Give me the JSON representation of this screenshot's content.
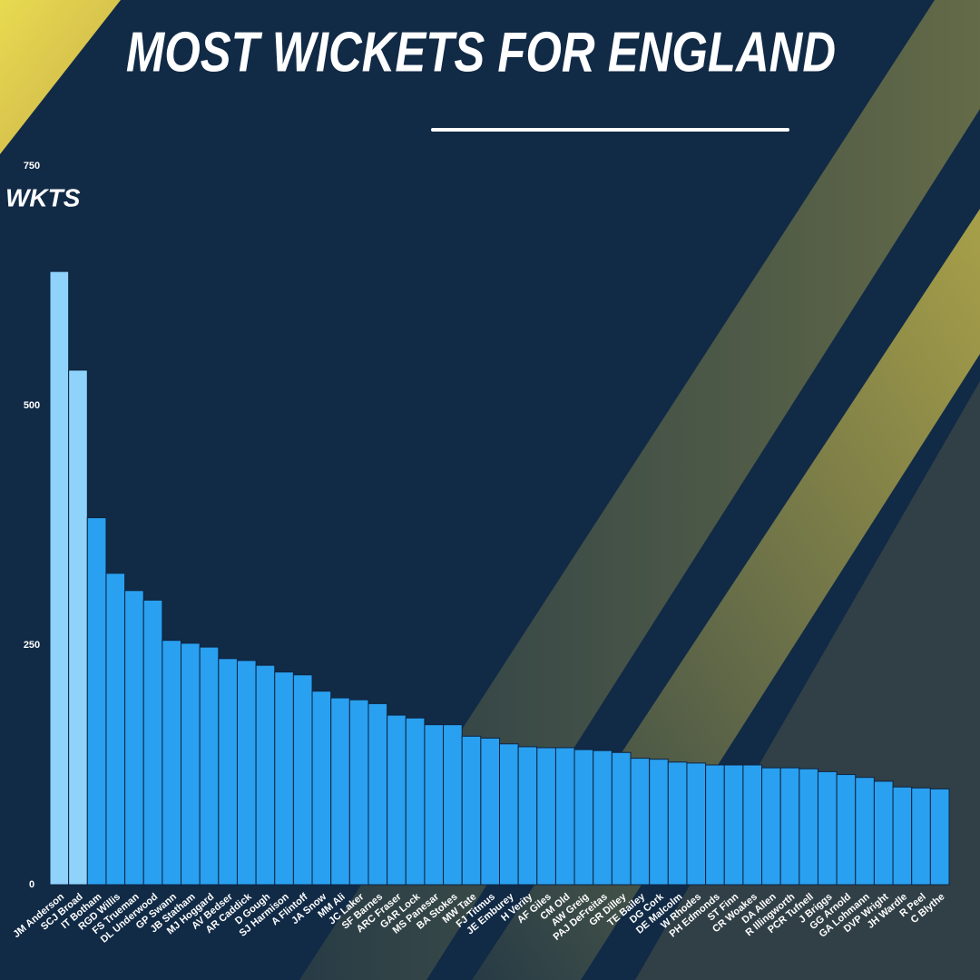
{
  "chart_data": {
    "type": "bar",
    "title": "MOST WICKETS FOR ENGLAND",
    "ylabel": "WKTS",
    "categories": [
      "JM Anderson",
      "SCJ Broad",
      "IT Botham",
      "RGD Willis",
      "FS Trueman",
      "DL Underwood",
      "GP Swann",
      "JB Statham",
      "MJ Hoggard",
      "AV Bedser",
      "AR Caddick",
      "D Gough",
      "SJ Harmison",
      "A Flintoff",
      "JA Snow",
      "MM Ali",
      "JC Laker",
      "SF Barnes",
      "ARC Fraser",
      "GAR Lock",
      "MS Panesar",
      "BA Stokes",
      "MW Tate",
      "FJ Titmus",
      "JE Emburey",
      "H Verity",
      "AF Giles",
      "CM Old",
      "AW Greig",
      "PAJ DeFreitas",
      "GR Dilley",
      "TE Bailey",
      "DG Cork",
      "DE Malcolm",
      "W Rhodes",
      "PH Edmonds",
      "ST Finn",
      "CR Woakes",
      "DA Allen",
      "R Illingworth",
      "PCR Tufnell",
      "J Briggs",
      "GG Arnold",
      "GA Lohmann",
      "DVP Wright",
      "JH Wardle",
      "R Peel",
      "C Blythe"
    ],
    "values": [
      640,
      537,
      383,
      325,
      307,
      297,
      255,
      252,
      248,
      236,
      234,
      229,
      222,
      219,
      202,
      195,
      193,
      189,
      177,
      174,
      167,
      167,
      155,
      153,
      147,
      144,
      143,
      143,
      141,
      140,
      138,
      132,
      131,
      128,
      127,
      125,
      125,
      125,
      122,
      122,
      121,
      118,
      115,
      112,
      108,
      102,
      101,
      100
    ],
    "colors": [
      "#8fd3fb",
      "#8fd3fb",
      "#2aa0f0",
      "#2aa0f0",
      "#2aa0f0",
      "#2aa0f0",
      "#2aa0f0",
      "#2aa0f0",
      "#2aa0f0",
      "#2aa0f0",
      "#2aa0f0",
      "#2aa0f0",
      "#2aa0f0",
      "#2aa0f0",
      "#2aa0f0",
      "#2aa0f0",
      "#2aa0f0",
      "#2aa0f0",
      "#2aa0f0",
      "#2aa0f0",
      "#2aa0f0",
      "#2aa0f0",
      "#2aa0f0",
      "#2aa0f0",
      "#2aa0f0",
      "#2aa0f0",
      "#2aa0f0",
      "#2aa0f0",
      "#2aa0f0",
      "#2aa0f0",
      "#2aa0f0",
      "#2aa0f0",
      "#2aa0f0",
      "#2aa0f0",
      "#2aa0f0",
      "#2aa0f0",
      "#2aa0f0",
      "#2aa0f0",
      "#2aa0f0",
      "#2aa0f0",
      "#2aa0f0",
      "#2aa0f0",
      "#2aa0f0",
      "#2aa0f0",
      "#2aa0f0",
      "#2aa0f0",
      "#2aa0f0",
      "#2aa0f0"
    ],
    "ylim": [
      0,
      750
    ],
    "yticks": [
      0,
      250,
      500,
      750
    ],
    "grid": false
  }
}
